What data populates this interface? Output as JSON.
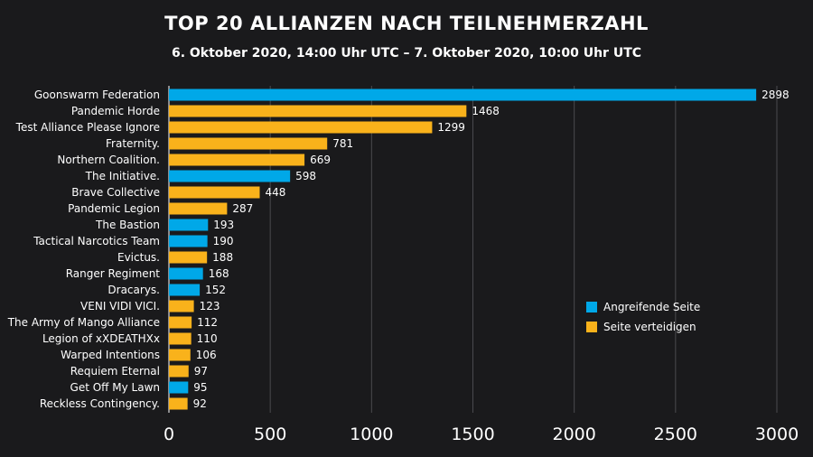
{
  "chart_data": {
    "type": "bar",
    "orientation": "horizontal",
    "title": "TOP 20 ALLIANZEN NACH TEILNEHMERZAHL",
    "subtitle": "6. Oktober 2020, 14:00 Uhr UTC – 7. Oktober 2020, 10:00 Uhr UTC",
    "xlim": [
      0,
      3000
    ],
    "xticks": [
      0,
      500,
      1000,
      1500,
      2000,
      2500,
      3000
    ],
    "grid": "vertical",
    "legend_position": "right",
    "legend": [
      {
        "key": "attacker",
        "label": "Angreifende Seite",
        "color": "#00a8e8"
      },
      {
        "key": "defender",
        "label": "Seite verteidigen",
        "color": "#f9b21b"
      }
    ],
    "bars": [
      {
        "name": "Goonswarm Federation",
        "value": 2898,
        "side": "attacker"
      },
      {
        "name": "Pandemic Horde",
        "value": 1468,
        "side": "defender"
      },
      {
        "name": "Test Alliance Please Ignore",
        "value": 1299,
        "side": "defender"
      },
      {
        "name": "Fraternity.",
        "value": 781,
        "side": "defender"
      },
      {
        "name": "Northern Coalition.",
        "value": 669,
        "side": "defender"
      },
      {
        "name": "The Initiative.",
        "value": 598,
        "side": "attacker"
      },
      {
        "name": "Brave Collective",
        "value": 448,
        "side": "defender"
      },
      {
        "name": "Pandemic Legion",
        "value": 287,
        "side": "defender"
      },
      {
        "name": "The Bastion",
        "value": 193,
        "side": "attacker"
      },
      {
        "name": "Tactical Narcotics Team",
        "value": 190,
        "side": "attacker"
      },
      {
        "name": "Evictus.",
        "value": 188,
        "side": "defender"
      },
      {
        "name": "Ranger Regiment",
        "value": 168,
        "side": "attacker"
      },
      {
        "name": "Dracarys.",
        "value": 152,
        "side": "attacker"
      },
      {
        "name": "VENI VIDI VICI.",
        "value": 123,
        "side": "defender"
      },
      {
        "name": "The Army of Mango Alliance",
        "value": 112,
        "side": "defender"
      },
      {
        "name": "Legion of xXDEATHXx",
        "value": 110,
        "side": "defender"
      },
      {
        "name": "Warped Intentions",
        "value": 106,
        "side": "defender"
      },
      {
        "name": "Requiem Eternal",
        "value": 97,
        "side": "defender"
      },
      {
        "name": "Get Off My Lawn",
        "value": 95,
        "side": "attacker"
      },
      {
        "name": "Reckless Contingency.",
        "value": 92,
        "side": "defender"
      }
    ]
  }
}
